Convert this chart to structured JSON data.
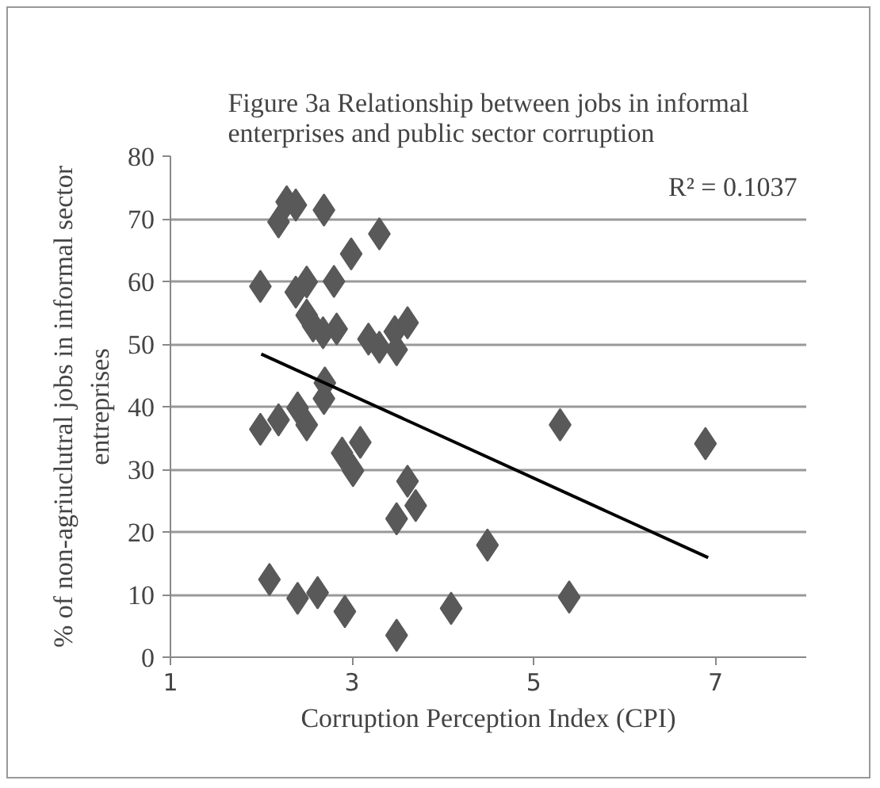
{
  "chart_data": {
    "type": "scatter",
    "title": "Figure 3a Relationship between jobs in informal enterprises and public sector corruption",
    "xlabel": "Corruption Perception Index (CPI)",
    "ylabel": "% of non-agriuclutral jobs in informal sector entreprises",
    "xlim": [
      1,
      8
    ],
    "xticks": [
      1,
      3,
      5,
      7
    ],
    "ylim": [
      0,
      80
    ],
    "yticks": [
      0,
      10,
      20,
      30,
      40,
      50,
      60,
      70,
      80
    ],
    "grid": "y",
    "annotations": [
      "R² = 0.1037"
    ],
    "series": [
      {
        "color": "#595959",
        "marker": "diamond",
        "x": [
          2.28,
          2.38,
          2.19,
          2.69,
          3.3,
          2.99,
          1.99,
          2.38,
          2.5,
          2.8,
          2.5,
          2.57,
          2.68,
          2.83,
          3.18,
          3.3,
          3.49,
          3.47,
          3.61,
          2.7,
          2.69,
          1.99,
          2.19,
          2.4,
          2.5,
          2.89,
          3.09,
          3.01,
          3.61,
          3.49,
          3.7,
          4.49,
          2.09,
          2.4,
          2.62,
          2.92,
          3.49,
          4.09,
          5.39,
          5.29,
          6.89
        ],
        "values": [
          72.7,
          72.2,
          69.5,
          71.4,
          67.6,
          64.4,
          59.2,
          58.3,
          59.9,
          60.0,
          54.6,
          52.9,
          51.8,
          52.4,
          50.8,
          49.5,
          49.1,
          52.0,
          53.4,
          43.8,
          41.3,
          36.4,
          37.9,
          39.8,
          37.1,
          32.6,
          34.3,
          29.8,
          28.1,
          22.1,
          24.2,
          17.9,
          12.4,
          9.4,
          10.3,
          7.3,
          3.5,
          7.8,
          9.6,
          37.1,
          34.1
        ]
      },
      {
        "type": "line",
        "color": "#000000",
        "x": [
          2.0,
          6.92
        ],
        "values": [
          48.4,
          15.9
        ]
      }
    ]
  }
}
